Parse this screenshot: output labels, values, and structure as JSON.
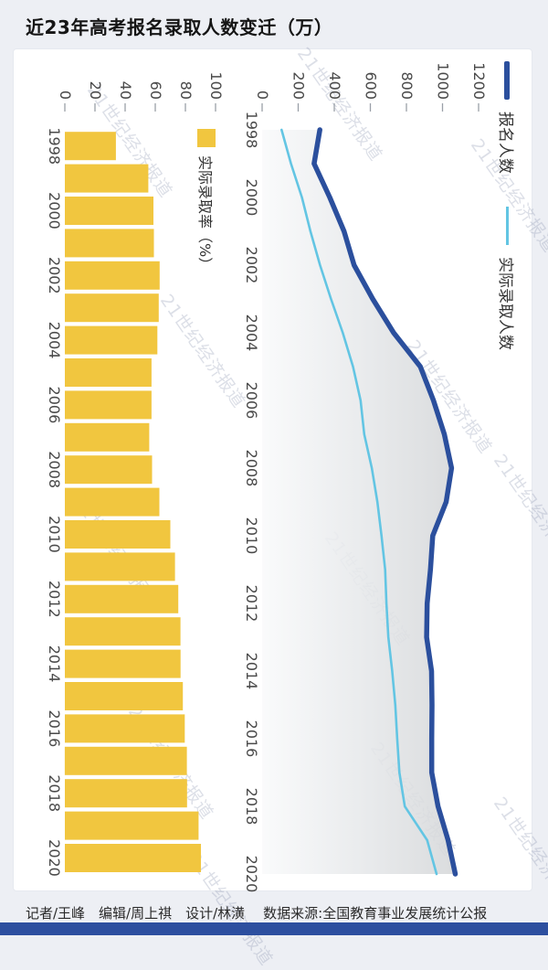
{
  "page_title": "近23年高考报名录取人数变迁（万）",
  "watermark_text": "21世纪经济报道",
  "footer": {
    "credits": "记者/王峰　编辑/周上祺　设计/林潢",
    "source": "数据来源:全国教育事业发展统计公报"
  },
  "colors": {
    "page_bg": "#edeff4",
    "card_bg": "#ffffff",
    "accent_bar": "#2d4f9f",
    "axis_text": "#4a4a4a",
    "tick": "#9aa0a8",
    "area_fill_from": "#f9fafb",
    "area_fill_to": "#d5d7d9"
  },
  "chart_data": [
    {
      "type": "bar",
      "orientation": "rotated_90_clockwise",
      "legend": "实际录取率（%）",
      "color": "#f1c63f",
      "unit": "%",
      "categories": [
        1998,
        1999,
        2000,
        2001,
        2002,
        2003,
        2004,
        2005,
        2006,
        2007,
        2008,
        2009,
        2010,
        2011,
        2012,
        2013,
        2014,
        2015,
        2016,
        2017,
        2018,
        2019,
        2020
      ],
      "values": [
        33.9,
        55.4,
        58.8,
        59.1,
        62.9,
        62.3,
        61.4,
        57.5,
        57.5,
        56.0,
        57.9,
        62.7,
        70.0,
        73.1,
        75.3,
        76.7,
        76.8,
        78.3,
        79.6,
        81.0,
        81.1,
        88.7,
        90.3
      ],
      "value_axis": {
        "ticks": [
          0,
          20,
          40,
          60,
          80,
          100
        ],
        "range": [
          0,
          100
        ]
      },
      "grid": false
    },
    {
      "type": "line",
      "orientation": "rotated_90_clockwise",
      "unit": "万",
      "categories": [
        1998,
        1999,
        2000,
        2001,
        2002,
        2003,
        2004,
        2005,
        2006,
        2007,
        2008,
        2009,
        2010,
        2011,
        2012,
        2013,
        2014,
        2015,
        2016,
        2017,
        2018,
        2019,
        2020
      ],
      "series": [
        {
          "name": "报名人数",
          "color": "#2b4f9d",
          "style": "thick-line-with-gray-area-fill",
          "values": [
            320,
            288,
            375,
            454,
            510,
            613,
            729,
            877,
            950,
            1010,
            1050,
            1020,
            946,
            933,
            915,
            912,
            939,
            942,
            940,
            940,
            975,
            1031,
            1071
          ]
        },
        {
          "name": "实际录取人数",
          "color": "#63c5e3",
          "style": "thin-line",
          "values": [
            108,
            160,
            221,
            268,
            321,
            382,
            447,
            504,
            546,
            566,
            608,
            639,
            662,
            682,
            689,
            700,
            721,
            738,
            749,
            761,
            791,
            915,
            967
          ]
        }
      ],
      "value_axis": {
        "ticks": [
          0,
          200,
          400,
          600,
          800,
          1000,
          1200
        ],
        "range": [
          0,
          1240
        ]
      },
      "grid": false,
      "legend_position": "top"
    }
  ]
}
